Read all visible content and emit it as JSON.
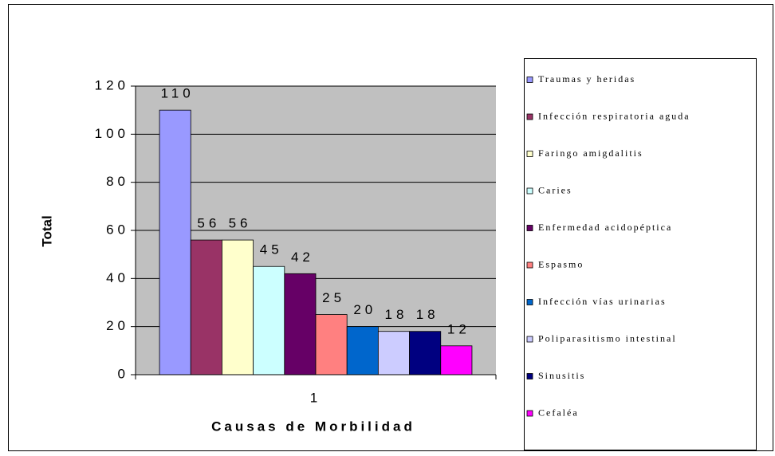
{
  "chart_data": {
    "type": "bar",
    "x_label": "Causas de Morbilidad",
    "y_label": "Total",
    "categories": [
      "1"
    ],
    "series": [
      {
        "name": "Traumas y heridas",
        "color": "#9999FF",
        "values": [
          110
        ]
      },
      {
        "name": "Infección respiratoria aguda",
        "color": "#993366",
        "values": [
          56
        ]
      },
      {
        "name": "Faringo amigdalitis",
        "color": "#FFFFCC",
        "values": [
          56
        ]
      },
      {
        "name": "Caries",
        "color": "#CCFFFF",
        "values": [
          45
        ]
      },
      {
        "name": "Enfermedad  acidopéptica",
        "color": "#660066",
        "values": [
          42
        ]
      },
      {
        "name": "Espasmo",
        "color": "#FF8080",
        "values": [
          25
        ]
      },
      {
        "name": "Infección vías urinarias",
        "color": "#0066CC",
        "values": [
          20
        ]
      },
      {
        "name": "Poliparasitismo intestinal",
        "color": "#CCCCFF",
        "values": [
          18
        ]
      },
      {
        "name": "Sinusitis",
        "color": "#000080",
        "values": [
          18
        ]
      },
      {
        "name": "Cefaléa",
        "color": "#FF00FF",
        "values": [
          12
        ]
      }
    ],
    "ylim": [
      0,
      120
    ],
    "yticks": [
      0,
      20,
      40,
      60,
      80,
      100,
      120
    ],
    "grid": true,
    "legend": "right",
    "plot_background": "#C0C0C0"
  }
}
